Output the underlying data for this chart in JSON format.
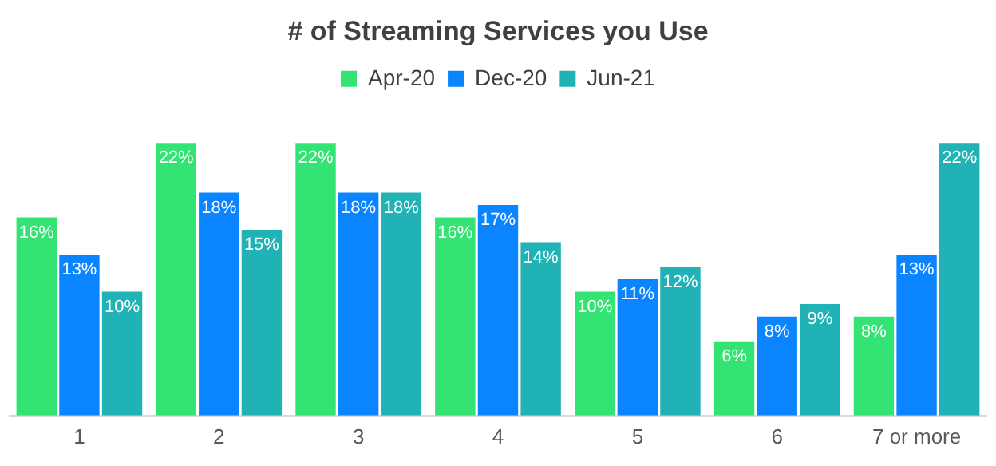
{
  "chart_data": {
    "type": "bar",
    "title": "# of Streaming Services you Use",
    "categories": [
      "1",
      "2",
      "3",
      "4",
      "5",
      "6",
      "7 or more"
    ],
    "series": [
      {
        "name": "Apr-20",
        "color": "#33e374",
        "values": [
          16,
          22,
          22,
          16,
          10,
          6,
          8
        ],
        "value_labels": [
          "16%",
          "22%",
          "22%",
          "16%",
          "10%",
          "6%",
          "8%"
        ]
      },
      {
        "name": "Dec-20",
        "color": "#0a84ff",
        "values": [
          13,
          18,
          18,
          17,
          11,
          8,
          13
        ],
        "value_labels": [
          "13%",
          "18%",
          "18%",
          "17%",
          "11%",
          "8%",
          "13%"
        ]
      },
      {
        "name": "Jun-21",
        "color": "#20b2b4",
        "values": [
          10,
          15,
          18,
          14,
          12,
          9,
          22
        ],
        "value_labels": [
          "10%",
          "15%",
          "18%",
          "14%",
          "12%",
          "9%",
          "22%"
        ]
      }
    ],
    "legend": "top",
    "grid": false
  }
}
